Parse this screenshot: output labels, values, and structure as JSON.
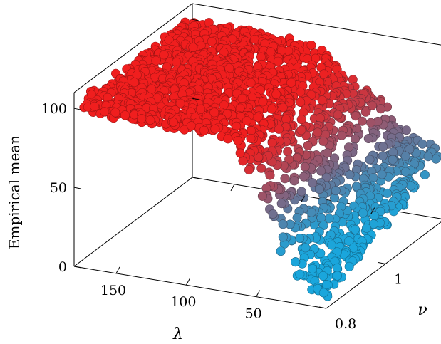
{
  "chart_data": {
    "type": "scatter",
    "subtype": "3d-scatter",
    "title": "",
    "xlabel": "λ",
    "ylabel": "ν",
    "zlabel": "Empirical mean",
    "x_ticks": [
      150,
      100,
      50
    ],
    "y_ticks": [
      0.8,
      1
    ],
    "z_ticks": [
      0,
      50,
      100
    ],
    "xlim": [
      0,
      180
    ],
    "ylim": [
      0.8,
      1.2
    ],
    "zlim": [
      0,
      110
    ],
    "grid": false,
    "colormap": {
      "low": "#1aa6dc",
      "high": "#f01e1e",
      "variable": "Empirical mean"
    },
    "surface_samples": [
      {
        "lambda": 180,
        "nu": 0.8,
        "mean": 100
      },
      {
        "lambda": 120,
        "nu": 0.8,
        "mean": 99
      },
      {
        "lambda": 80,
        "nu": 0.8,
        "mean": 95
      },
      {
        "lambda": 50,
        "nu": 0.8,
        "mean": 75
      },
      {
        "lambda": 40,
        "nu": 0.8,
        "mean": 45
      },
      {
        "lambda": 20,
        "nu": 0.8,
        "mean": 15
      },
      {
        "lambda": 180,
        "nu": 1.2,
        "mean": 100
      },
      {
        "lambda": 100,
        "nu": 1.2,
        "mean": 92
      },
      {
        "lambda": 40,
        "nu": 1.2,
        "mean": 55
      },
      {
        "lambda": 5,
        "nu": 1.2,
        "mean": 40
      }
    ]
  }
}
